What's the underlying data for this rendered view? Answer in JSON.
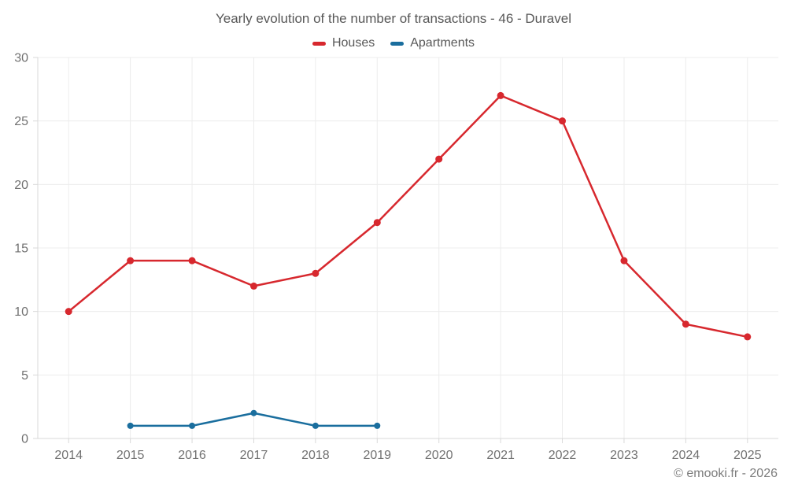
{
  "title": "Yearly evolution of the number of transactions - 46 - Duravel",
  "footer_credit": "© emooki.fr - 2026",
  "legend": {
    "items": [
      {
        "label": "Houses",
        "color": "#d7282e"
      },
      {
        "label": "Apartments",
        "color": "#1a6e9e"
      }
    ]
  },
  "chart_data": {
    "type": "line",
    "title": "Yearly evolution of the number of transactions - 46 - Duravel",
    "categories": [
      "2014",
      "2015",
      "2016",
      "2017",
      "2018",
      "2019",
      "2020",
      "2021",
      "2022",
      "2023",
      "2024",
      "2025"
    ],
    "series": [
      {
        "name": "Houses",
        "color": "#d7282e",
        "marker_radius": 4.5,
        "values": [
          10,
          14,
          14,
          12,
          13,
          17,
          22,
          27,
          25,
          14,
          9,
          8
        ]
      },
      {
        "name": "Apartments",
        "color": "#1a6e9e",
        "marker_radius": 4,
        "values": [
          null,
          1,
          1,
          2,
          1,
          1,
          null,
          null,
          null,
          null,
          null,
          null
        ]
      }
    ],
    "xlabel": "",
    "ylabel": "",
    "ylim": [
      0,
      30
    ],
    "yticks": [
      0,
      5,
      10,
      15,
      20,
      25,
      30
    ],
    "grid": true,
    "legend_position": "top",
    "marker": "circle"
  },
  "colors": {
    "grid": "#ececec",
    "axis": "#d9d9d9",
    "tick_label": "#717171"
  }
}
